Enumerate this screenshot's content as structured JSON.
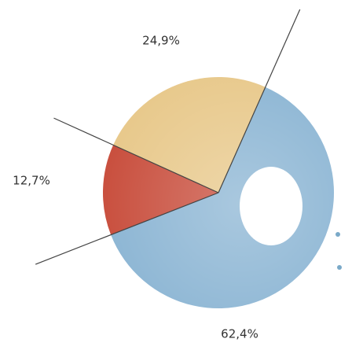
{
  "chart_data": {
    "type": "pie",
    "values": [
      62.4,
      12.7,
      24.9
    ],
    "value_labels": [
      "62,4%",
      "12,7%",
      "24,9%"
    ],
    "colors": [
      "#8db6d4",
      "#c9503f",
      "#e8c98c"
    ]
  }
}
